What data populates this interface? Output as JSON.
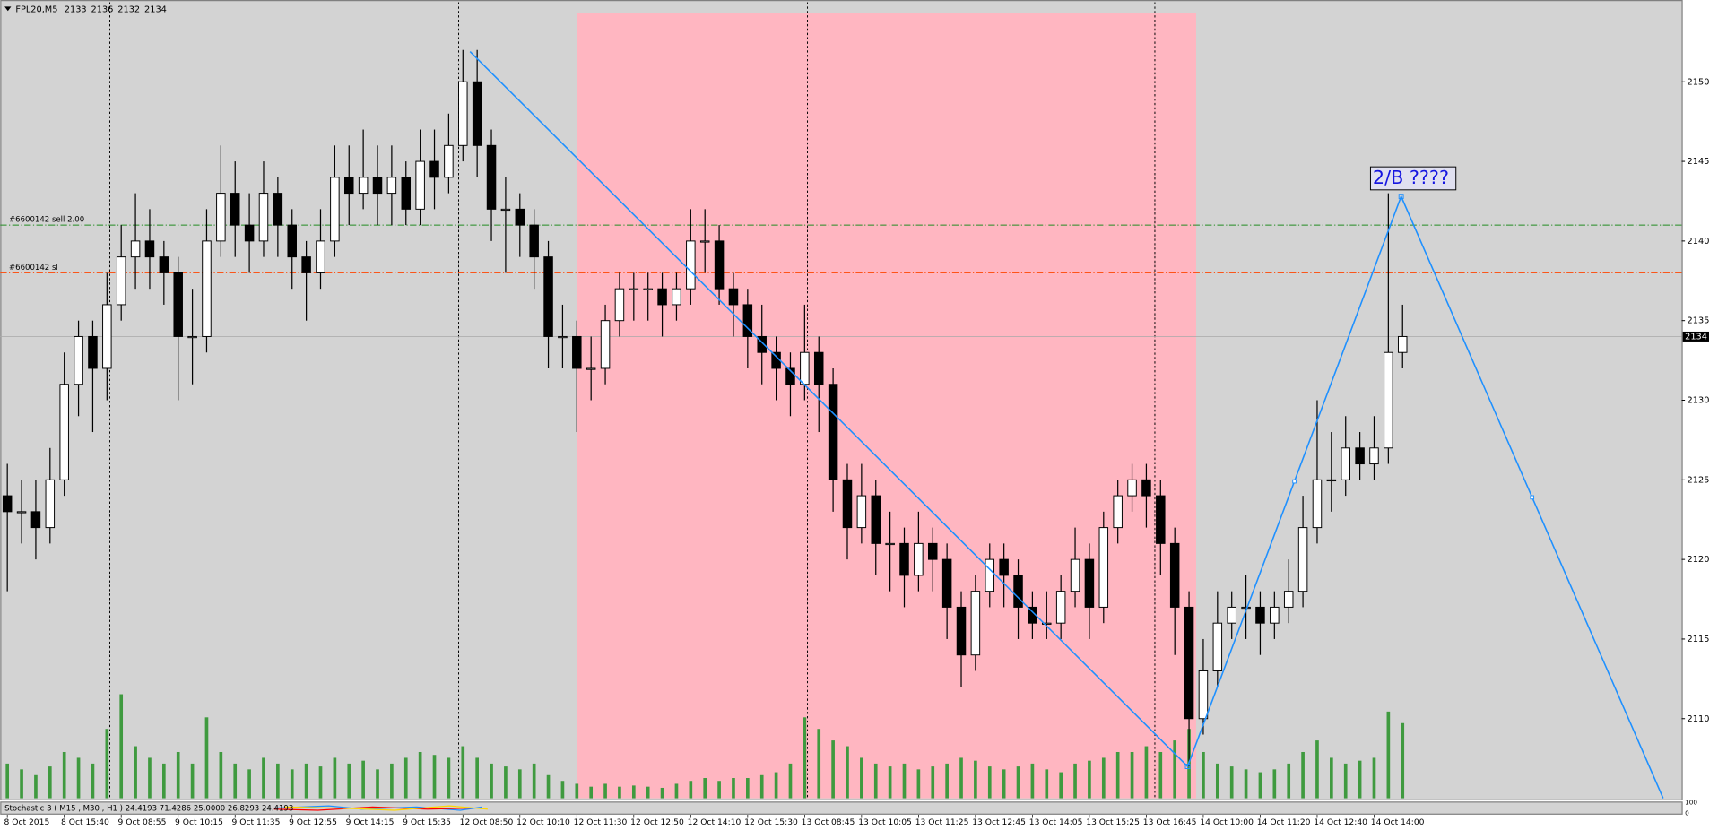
{
  "chart_data": {
    "type": "candlestick",
    "title": "FPL20,M5",
    "categories": [
      "8 Oct 2015",
      null,
      null,
      null,
      "8 Oct 15:40",
      null,
      null,
      null,
      "9 Oct 08:55",
      null,
      null,
      null,
      "9 Oct 10:15",
      null,
      null,
      null,
      "9 Oct 11:35",
      null,
      null,
      null,
      "9 Oct 12:55",
      null,
      null,
      null,
      "9 Oct 14:15",
      null,
      null,
      null,
      "9 Oct 15:35",
      null,
      null,
      null,
      "12 Oct 08:50",
      null,
      null,
      null,
      "12 Oct 10:10",
      null,
      null,
      null,
      "12 Oct 11:30",
      null,
      null,
      null,
      "12 Oct 12:50",
      null,
      null,
      null,
      "12 Oct 14:10",
      null,
      null,
      null,
      "12 Oct 15:30",
      null,
      null,
      null,
      "13 Oct 08:45",
      null,
      null,
      null,
      "13 Oct 10:05",
      null,
      null,
      null,
      "13 Oct 11:25",
      null,
      null,
      null,
      "13 Oct 12:45",
      null,
      null,
      null,
      "13 Oct 14:05",
      null,
      null,
      null,
      "13 Oct 15:25",
      null,
      null,
      null,
      "13 Oct 16:45",
      null,
      null,
      null,
      "14 Oct 10:00",
      null,
      null,
      null,
      "14 Oct 11:20",
      null,
      null,
      null,
      "14 Oct 12:40",
      null,
      null,
      null,
      "14 Oct 14:00",
      null,
      null
    ],
    "open": [
      2124,
      2123,
      2123,
      2122,
      2125,
      2131,
      2134,
      2132,
      2136,
      2139,
      2140,
      2139,
      2138,
      2134,
      2134,
      2140,
      2143,
      2141,
      2140,
      2143,
      2141,
      2139,
      2138,
      2140,
      2144,
      2143,
      2144,
      2143,
      2144,
      2142,
      2145,
      2144,
      2146,
      2150,
      2146,
      2142,
      2142,
      2141,
      2139,
      2134,
      2134,
      2132,
      2132,
      2135,
      2137,
      2137,
      2137,
      2136,
      2137,
      2140,
      2140,
      2137,
      2136,
      2134,
      2133,
      2132,
      2131,
      2133,
      2131,
      2125,
      2122,
      2124,
      2121,
      2121,
      2119,
      2121,
      2120,
      2117,
      2114,
      2118,
      2120,
      2119,
      2117,
      2116,
      2116,
      2118,
      2120,
      2117,
      2122,
      2124,
      2125,
      2124,
      2121,
      2117,
      2110,
      2113,
      2116,
      2117,
      2117,
      2116,
      2117,
      2118,
      2122,
      2125,
      2125,
      2127,
      2126,
      2127,
      2133
    ],
    "high": [
      2126,
      2125,
      2125,
      2127,
      2133,
      2135,
      2135,
      2138,
      2141,
      2143,
      2142,
      2140,
      2139,
      2137,
      2142,
      2146,
      2145,
      2143,
      2145,
      2144,
      2142,
      2140,
      2142,
      2146,
      2146,
      2147,
      2146,
      2146,
      2145,
      2147,
      2147,
      2148,
      2152,
      2152,
      2147,
      2144,
      2143,
      2142,
      2140,
      2136,
      2135,
      2134,
      2136,
      2138,
      2138,
      2138,
      2138,
      2138,
      2142,
      2142,
      2141,
      2138,
      2137,
      2136,
      2134,
      2133,
      2136,
      2134,
      2132,
      2126,
      2126,
      2125,
      2123,
      2122,
      2123,
      2122,
      2121,
      2118,
      2119,
      2121,
      2121,
      2120,
      2118,
      2118,
      2119,
      2122,
      2121,
      2123,
      2125,
      2126,
      2126,
      2125,
      2122,
      2118,
      2115,
      2118,
      2118,
      2119,
      2118,
      2118,
      2120,
      2124,
      2130,
      2128,
      2129,
      2128,
      2129,
      2143,
      2136
    ],
    "low": [
      2118,
      2121,
      2120,
      2121,
      2124,
      2129,
      2128,
      2130,
      2135,
      2137,
      2137,
      2136,
      2130,
      2131,
      2133,
      2139,
      2139,
      2138,
      2139,
      2139,
      2137,
      2135,
      2137,
      2139,
      2141,
      2142,
      2141,
      2141,
      2141,
      2141,
      2142,
      2143,
      2145,
      2144,
      2140,
      2138,
      2139,
      2137,
      2132,
      2132,
      2128,
      2130,
      2131,
      2134,
      2135,
      2135,
      2134,
      2135,
      2136,
      2138,
      2136,
      2134,
      2132,
      2131,
      2130,
      2129,
      2130,
      2128,
      2123,
      2120,
      2121,
      2119,
      2118,
      2117,
      2118,
      2118,
      2115,
      2112,
      2113,
      2117,
      2117,
      2115,
      2115,
      2115,
      2115,
      2117,
      2115,
      2116,
      2121,
      2123,
      2122,
      2119,
      2114,
      2107,
      2109,
      2112,
      2115,
      2115,
      2114,
      2115,
      2116,
      2117,
      2121,
      2123,
      2124,
      2125,
      2125,
      2126,
      2132
    ],
    "close": [
      2123,
      2123,
      2122,
      2125,
      2131,
      2134,
      2132,
      2136,
      2139,
      2140,
      2139,
      2138,
      2134,
      2134,
      2140,
      2143,
      2141,
      2140,
      2143,
      2141,
      2139,
      2138,
      2140,
      2144,
      2143,
      2144,
      2143,
      2144,
      2142,
      2145,
      2144,
      2146,
      2150,
      2146,
      2142,
      2142,
      2141,
      2139,
      2134,
      2134,
      2132,
      2132,
      2135,
      2137,
      2137,
      2137,
      2136,
      2137,
      2140,
      2140,
      2137,
      2136,
      2134,
      2133,
      2132,
      2131,
      2133,
      2131,
      2125,
      2122,
      2124,
      2121,
      2121,
      2119,
      2121,
      2120,
      2117,
      2114,
      2118,
      2120,
      2119,
      2117,
      2116,
      2116,
      2118,
      2120,
      2117,
      2122,
      2124,
      2125,
      2124,
      2121,
      2117,
      2110,
      2113,
      2116,
      2117,
      2117,
      2116,
      2117,
      2118,
      2122,
      2125,
      2125,
      2127,
      2126,
      2127,
      2133,
      2134
    ],
    "volume": [
      60,
      50,
      40,
      55,
      80,
      70,
      60,
      120,
      180,
      90,
      70,
      60,
      80,
      60,
      140,
      80,
      60,
      50,
      70,
      60,
      50,
      60,
      55,
      70,
      60,
      65,
      50,
      60,
      70,
      80,
      75,
      70,
      90,
      70,
      60,
      55,
      50,
      60,
      40,
      30,
      25,
      20,
      25,
      20,
      22,
      20,
      18,
      25,
      30,
      35,
      30,
      35,
      35,
      40,
      45,
      60,
      140,
      120,
      100,
      90,
      70,
      60,
      55,
      60,
      50,
      55,
      60,
      70,
      65,
      55,
      50,
      55,
      60,
      50,
      45,
      60,
      65,
      70,
      80,
      80,
      90,
      80,
      100,
      120,
      80,
      60,
      55,
      50,
      45,
      50,
      60,
      80,
      100,
      70,
      60,
      65,
      70,
      150,
      130
    ],
    "candle_color": "#000000",
    "volume_color": "#3f9a3f",
    "xlim": [
      -0.5,
      117.6
    ],
    "ylim": [
      2105,
      2155
    ],
    "yticks": [
      2110,
      2115,
      2120,
      2125,
      2130,
      2135,
      2140,
      2145,
      2150
    ],
    "period_separators": [
      7.2,
      31.7,
      56.2,
      80.6
    ],
    "highlight": {
      "x": [
        40,
        83.5
      ],
      "y_top": 2154.3,
      "color": "#ffb6c1"
    },
    "order_lines": [
      {
        "label": "#6600142 sell 2.00",
        "price": 2141,
        "color": "#228b22"
      },
      {
        "label": "#6600142 sl",
        "price": 2138,
        "color": "#ff4500"
      }
    ],
    "trendline": {
      "x": [
        32.5,
        82.9,
        97.9,
        116.3
      ],
      "y": [
        2151.9,
        2107,
        2142.8,
        2105
      ],
      "color": "#1e90ff",
      "annotation": "2/B ????"
    },
    "indicator": {
      "label": "Stochastic 3 ( M15 , M30 , H1 ) 24.4193 71.4286 25.0000 26.8293 24.4193",
      "yticks": [
        100,
        0
      ]
    }
  }
}
